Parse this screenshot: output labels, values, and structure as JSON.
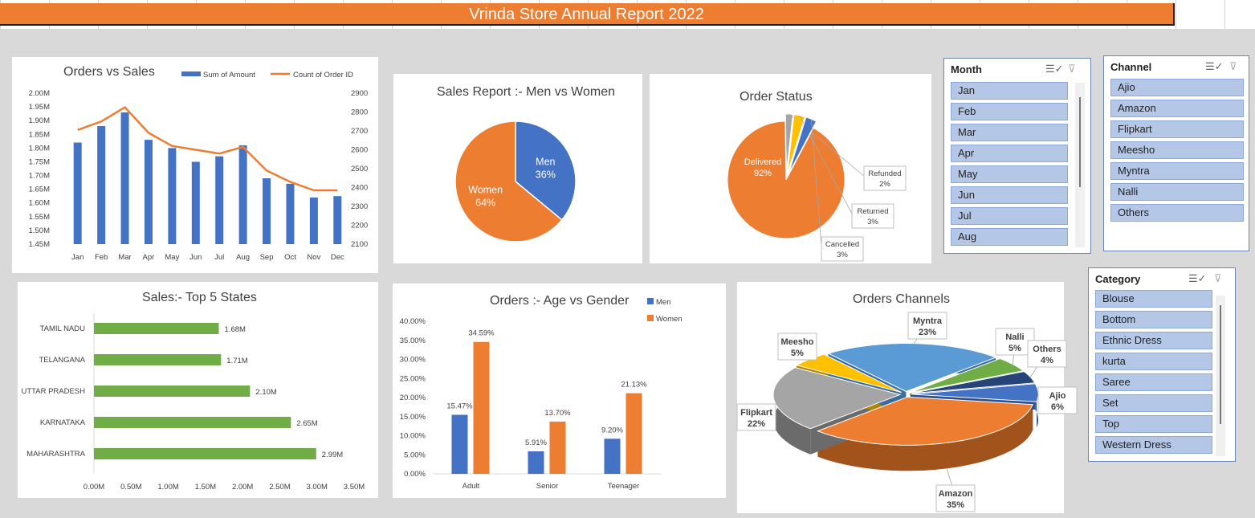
{
  "report_title": "Vrinda Store Annual Report 2022",
  "slicers": {
    "month": {
      "title": "Month",
      "items": [
        "Jan",
        "Feb",
        "Mar",
        "Apr",
        "May",
        "Jun",
        "Jul",
        "Aug"
      ]
    },
    "channel": {
      "title": "Channel",
      "items": [
        "Ajio",
        "Amazon",
        "Flipkart",
        "Meesho",
        "Myntra",
        "Nalli",
        "Others"
      ]
    },
    "category": {
      "title": "Category",
      "items": [
        "Blouse",
        "Bottom",
        "Ethnic Dress",
        "kurta",
        "Saree",
        "Set",
        "Top",
        "Western Dress"
      ]
    }
  },
  "chart_data": [
    {
      "type": "bar",
      "title": "Orders vs Sales",
      "categories": [
        "Jan",
        "Feb",
        "Mar",
        "Apr",
        "May",
        "Jun",
        "Jul",
        "Aug",
        "Sep",
        "Oct",
        "Nov",
        "Dec"
      ],
      "series": [
        {
          "name": "Sum of Amount",
          "type": "bar",
          "axis": "left",
          "color": "#4472c4",
          "values": [
            1.82,
            1.88,
            1.93,
            1.83,
            1.8,
            1.75,
            1.77,
            1.81,
            1.69,
            1.67,
            1.62,
            1.625
          ]
        },
        {
          "name": "Count of Order ID",
          "type": "line",
          "axis": "right",
          "color": "#ed7d31",
          "values": [
            2705,
            2750,
            2825,
            2690,
            2620,
            2600,
            2580,
            2615,
            2490,
            2430,
            2385,
            2385
          ]
        }
      ],
      "ylim_left": [
        1.45,
        2.0
      ],
      "yticks_left": [
        "1.45M",
        "1.50M",
        "1.55M",
        "1.60M",
        "1.65M",
        "1.70M",
        "1.75M",
        "1.80M",
        "1.85M",
        "1.90M",
        "1.95M",
        "2.00M"
      ],
      "ylim_right": [
        2100,
        2900
      ],
      "yticks_right": [
        "2100",
        "2200",
        "2300",
        "2400",
        "2500",
        "2600",
        "2700",
        "2800",
        "2900"
      ],
      "legend": "top-right"
    },
    {
      "type": "pie",
      "title": "Sales Report :- Men vs Women",
      "slices": [
        {
          "label": "Men",
          "value": 36,
          "display": "36%",
          "color": "#4472c4"
        },
        {
          "label": "Women",
          "value": 64,
          "display": "64%",
          "color": "#ed7d31"
        }
      ]
    },
    {
      "type": "pie",
      "title": "Order Status",
      "slices": [
        {
          "label": "Delivered",
          "value": 92,
          "display": "92%",
          "color": "#ed7d31"
        },
        {
          "label": "Refunded",
          "value": 2,
          "display": "2%",
          "color": "#a5a5a5"
        },
        {
          "label": "Returned",
          "value": 3,
          "display": "3%",
          "color": "#ffc000"
        },
        {
          "label": "Cancelled",
          "value": 3,
          "display": "3%",
          "color": "#4472c4"
        }
      ]
    },
    {
      "type": "bar",
      "orientation": "horizontal",
      "title": "Sales:- Top 5 States",
      "categories": [
        "TAMIL NADU",
        "TELANGANA",
        "UTTAR PRADESH",
        "KARNATAKA",
        "MAHARASHTRA"
      ],
      "values": [
        1.68,
        1.71,
        2.1,
        2.65,
        2.99
      ],
      "value_labels": [
        "1.68M",
        "1.71M",
        "2.10M",
        "2.65M",
        "2.99M"
      ],
      "color": "#70ad47",
      "xlim": [
        0,
        3.5
      ],
      "xticks": [
        "0.00M",
        "0.50M",
        "1.00M",
        "1.50M",
        "2.00M",
        "2.50M",
        "3.00M",
        "3.50M"
      ]
    },
    {
      "type": "bar",
      "title": "Orders :- Age vs Gender",
      "categories": [
        "Adult",
        "Senior",
        "Teenager"
      ],
      "series": [
        {
          "name": "Men",
          "color": "#4472c4",
          "values": [
            15.47,
            5.91,
            9.2
          ],
          "labels": [
            "15.47%",
            "5.91%",
            "9.20%"
          ]
        },
        {
          "name": "Women",
          "color": "#ed7d31",
          "values": [
            34.59,
            13.7,
            21.13
          ],
          "labels": [
            "34.59%",
            "13.70%",
            "21.13%"
          ]
        }
      ],
      "ylim": [
        0,
        40
      ],
      "yticks": [
        "0.00%",
        "5.00%",
        "10.00%",
        "15.00%",
        "20.00%",
        "25.00%",
        "30.00%",
        "35.00%",
        "40.00%"
      ],
      "legend": "top-right"
    },
    {
      "type": "pie",
      "title": "Orders Channels",
      "slices": [
        {
          "label": "Amazon",
          "value": 35,
          "display": "35%",
          "color": "#ed7d31"
        },
        {
          "label": "Flipkart",
          "value": 22,
          "display": "22%",
          "color": "#a5a5a5"
        },
        {
          "label": "Meesho",
          "value": 5,
          "display": "5%",
          "color": "#ffc000"
        },
        {
          "label": "Myntra",
          "value": 23,
          "display": "23%",
          "color": "#5b9bd5"
        },
        {
          "label": "Nalli",
          "value": 5,
          "display": "5%",
          "color": "#70ad47"
        },
        {
          "label": "Others",
          "value": 4,
          "display": "4%",
          "color": "#264478"
        },
        {
          "label": "Ajio",
          "value": 6,
          "display": "6%",
          "color": "#4472c4"
        }
      ]
    }
  ]
}
